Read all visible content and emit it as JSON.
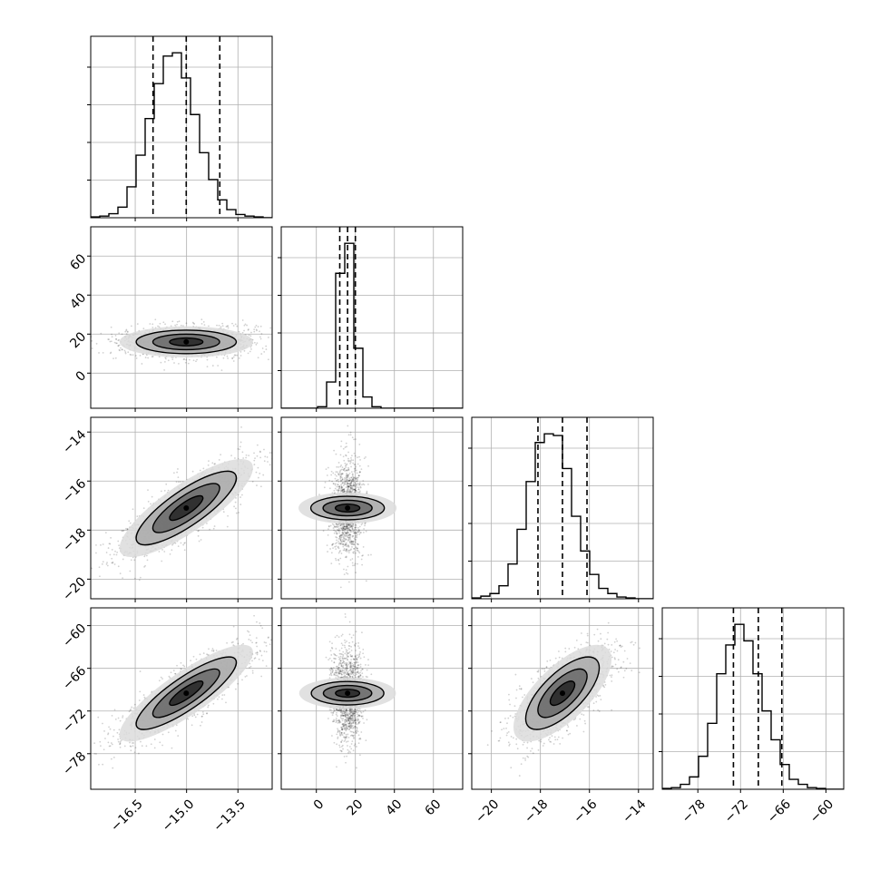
{
  "chart_data": {
    "type": "corner",
    "parameters": [
      {
        "range": [
          -17.8,
          -12.5
        ],
        "ticks": [
          -16.5,
          -15.0,
          -13.5
        ],
        "tick_labels": [
          "−16.5",
          "−15.0",
          "−13.5"
        ],
        "quantiles": [
          -15.98,
          -15.01,
          -14.03
        ],
        "hist_edges_start": -17.8,
        "hist_bin_width": 0.265,
        "hist_counts": [
          1,
          2,
          5,
          13,
          38,
          77,
          122,
          165,
          199,
          203,
          172,
          127,
          80,
          47,
          22,
          10,
          4,
          2,
          1,
          0
        ]
      },
      {
        "range": [
          -18,
          75
        ],
        "ticks": [
          0,
          20,
          40,
          60
        ],
        "tick_labels": [
          "0",
          "20",
          "40",
          "60"
        ],
        "quantiles": [
          12.0,
          16.0,
          20.0
        ],
        "hist_edges_start": -18,
        "hist_bin_width": 4.65,
        "hist_counts": [
          0,
          0,
          0,
          0,
          2,
          35,
          180,
          220,
          80,
          15,
          2,
          0,
          0,
          0,
          0,
          0,
          0,
          0,
          0,
          0
        ]
      },
      {
        "range": [
          -20.8,
          -13.4
        ],
        "ticks": [
          -20,
          -18,
          -16,
          -14
        ],
        "tick_labels": [
          "−20",
          "−18",
          "−16",
          "−14"
        ],
        "quantiles": [
          -18.1,
          -17.1,
          -16.1
        ],
        "hist_edges_start": -20.8,
        "hist_bin_width": 0.37,
        "hist_counts": [
          1,
          3,
          6,
          15,
          40,
          80,
          135,
          180,
          190,
          188,
          150,
          95,
          55,
          28,
          12,
          6,
          2,
          1,
          0,
          0
        ]
      },
      {
        "range": [
          -83,
          -57.5
        ],
        "ticks": [
          -78,
          -72,
          -66,
          -60
        ],
        "tick_labels": [
          "−78",
          "−72",
          "−66",
          "−60"
        ],
        "quantiles": [
          -73.0,
          -69.5,
          -66.2
        ],
        "hist_edges_start": -83,
        "hist_bin_width": 1.275,
        "hist_counts": [
          1,
          2,
          6,
          15,
          40,
          80,
          140,
          175,
          200,
          180,
          140,
          95,
          60,
          30,
          12,
          6,
          2,
          1,
          0,
          0
        ]
      }
    ],
    "correlations": {
      "1-0": 0.0,
      "2-0": 0.82,
      "2-1": 0.0,
      "3-0": 0.85,
      "3-1": 0.0,
      "3-2": 0.7
    },
    "contour_levels_sigma": [
      0.5,
      1.0,
      1.5,
      2.0
    ],
    "grid": true,
    "quantile_line_style": "dashed"
  }
}
